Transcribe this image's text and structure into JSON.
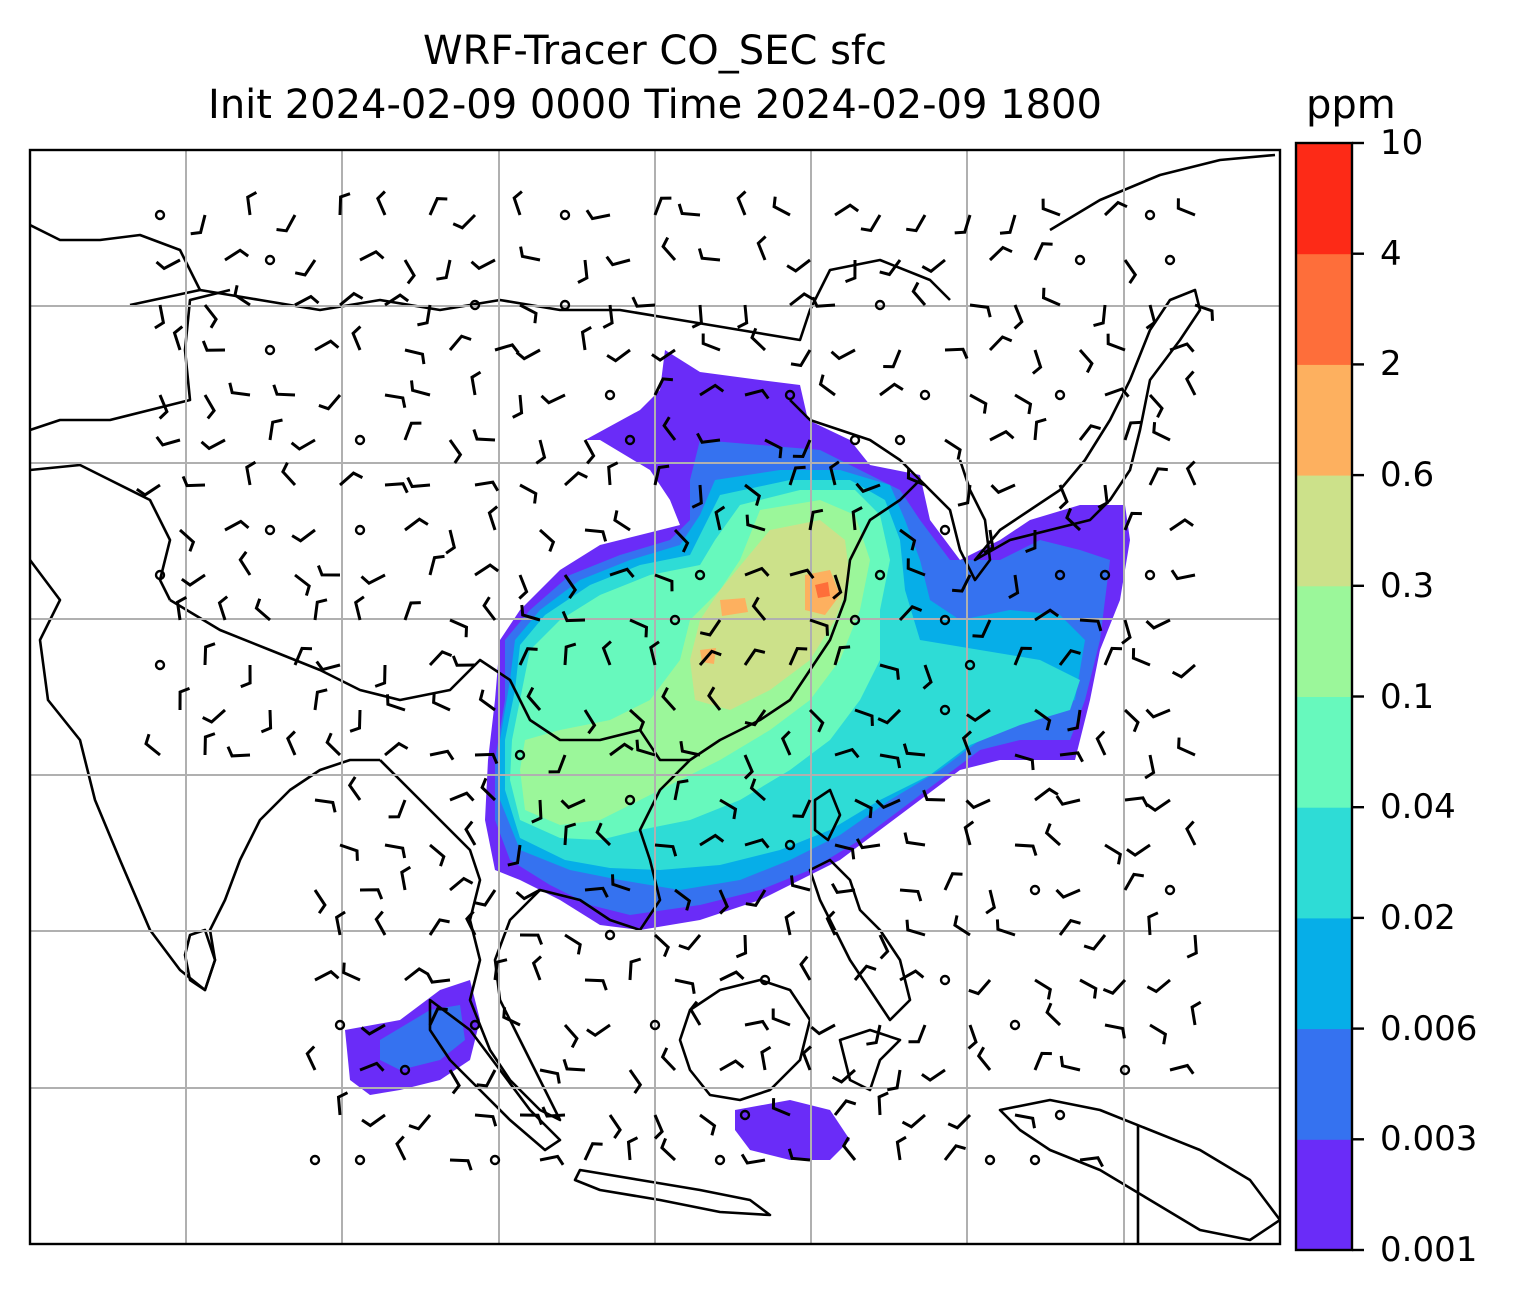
{
  "title": {
    "line1": "WRF-Tracer CO_SEC sfc",
    "line2": "Init 2024-02-09 0000 Time 2024-02-09 1800"
  },
  "colorbar": {
    "units": "ppm",
    "ticks": [
      "0.001",
      "0.003",
      "0.006",
      "0.02",
      "0.04",
      "0.1",
      "0.3",
      "0.6",
      "2",
      "4",
      "10"
    ],
    "colors": [
      "#6a2cf8",
      "#3572f0",
      "#06aee8",
      "#2edcd6",
      "#67f9bd",
      "#9bf79a",
      "#cce18a",
      "#fdb05f",
      "#fe6e3a",
      "#fd2a17"
    ]
  },
  "map": {
    "coastline_color": "#000000",
    "gridline_color": "#b0b0b0"
  }
}
